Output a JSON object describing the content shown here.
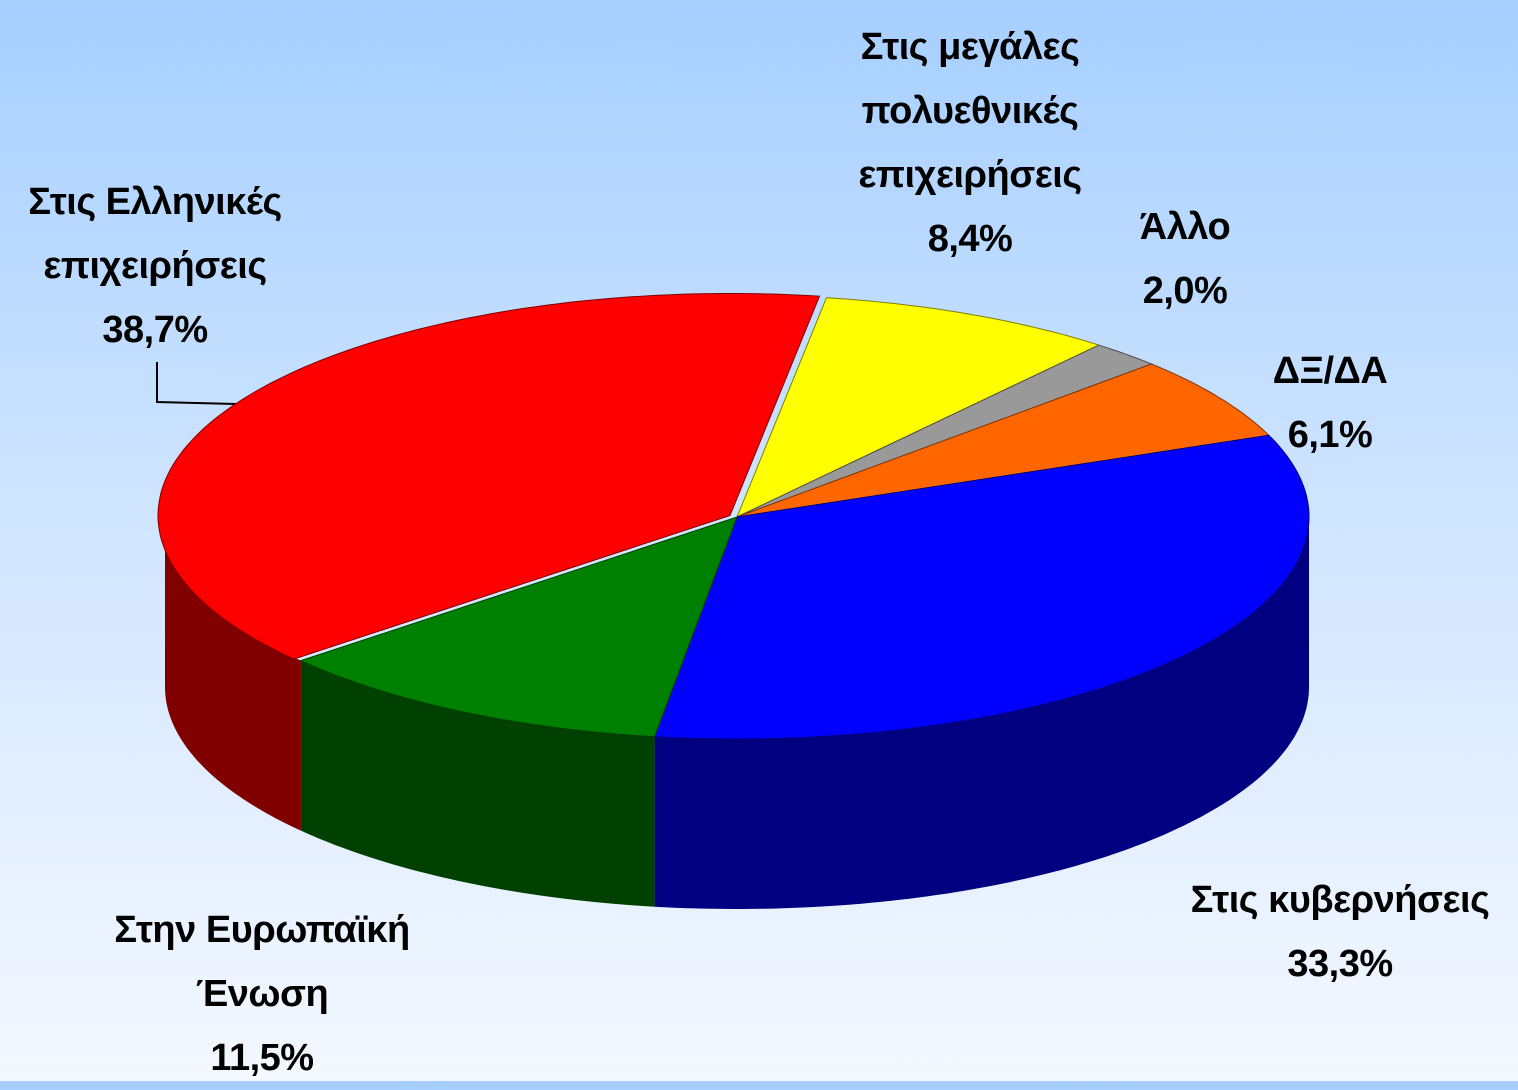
{
  "chart_data": {
    "type": "pie",
    "style": "3d",
    "categories": [
      "Στις μεγάλες πολυεθνικές επιχειρήσεις",
      "Άλλο",
      "ΔΞ/ΔΑ",
      "Στις κυβερνήσεις",
      "Στην Ευρωπαϊκή Ένωση",
      "Στις Ελληνικές επιχειρήσεις"
    ],
    "values": [
      8.4,
      2.0,
      6.1,
      33.3,
      11.5,
      38.7
    ],
    "value_labels": [
      "8,4%",
      "2,0%",
      "6,1%",
      "33,3%",
      "11,5%",
      "38,7%"
    ],
    "colors": [
      "#ffff00",
      "#999999",
      "#ff6600",
      "#0000ff",
      "#008000",
      "#ff0000"
    ]
  }
}
